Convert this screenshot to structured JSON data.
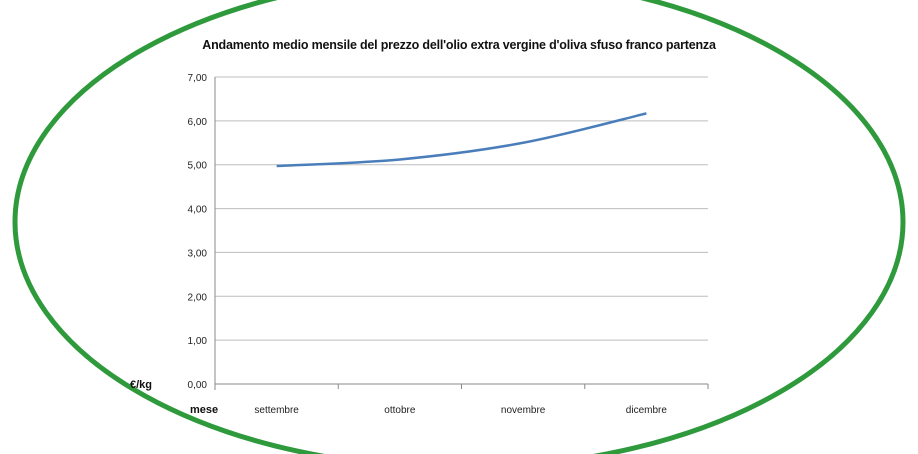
{
  "chart_data": {
    "type": "line",
    "title": "Andamento medio mensile del prezzo dell'olio extra vergine d'oliva sfuso franco partenza",
    "xlabel": "mese",
    "ylabel": "€/kg",
    "categories": [
      "settembre",
      "ottobre",
      "novembre",
      "dicembre"
    ],
    "y_tick_labels": [
      "0,00",
      "1,00",
      "2,00",
      "3,00",
      "4,00",
      "5,00",
      "6,00",
      "7,00"
    ],
    "series": [
      {
        "values": [
          4.97,
          5.12,
          5.5,
          6.17
        ]
      }
    ],
    "ylim": [
      0,
      7
    ],
    "grid": true,
    "legend": "none"
  },
  "colors": {
    "line": "#4a7ebb",
    "grid": "#bdbdbd",
    "frame": "#2e9a3c"
  }
}
